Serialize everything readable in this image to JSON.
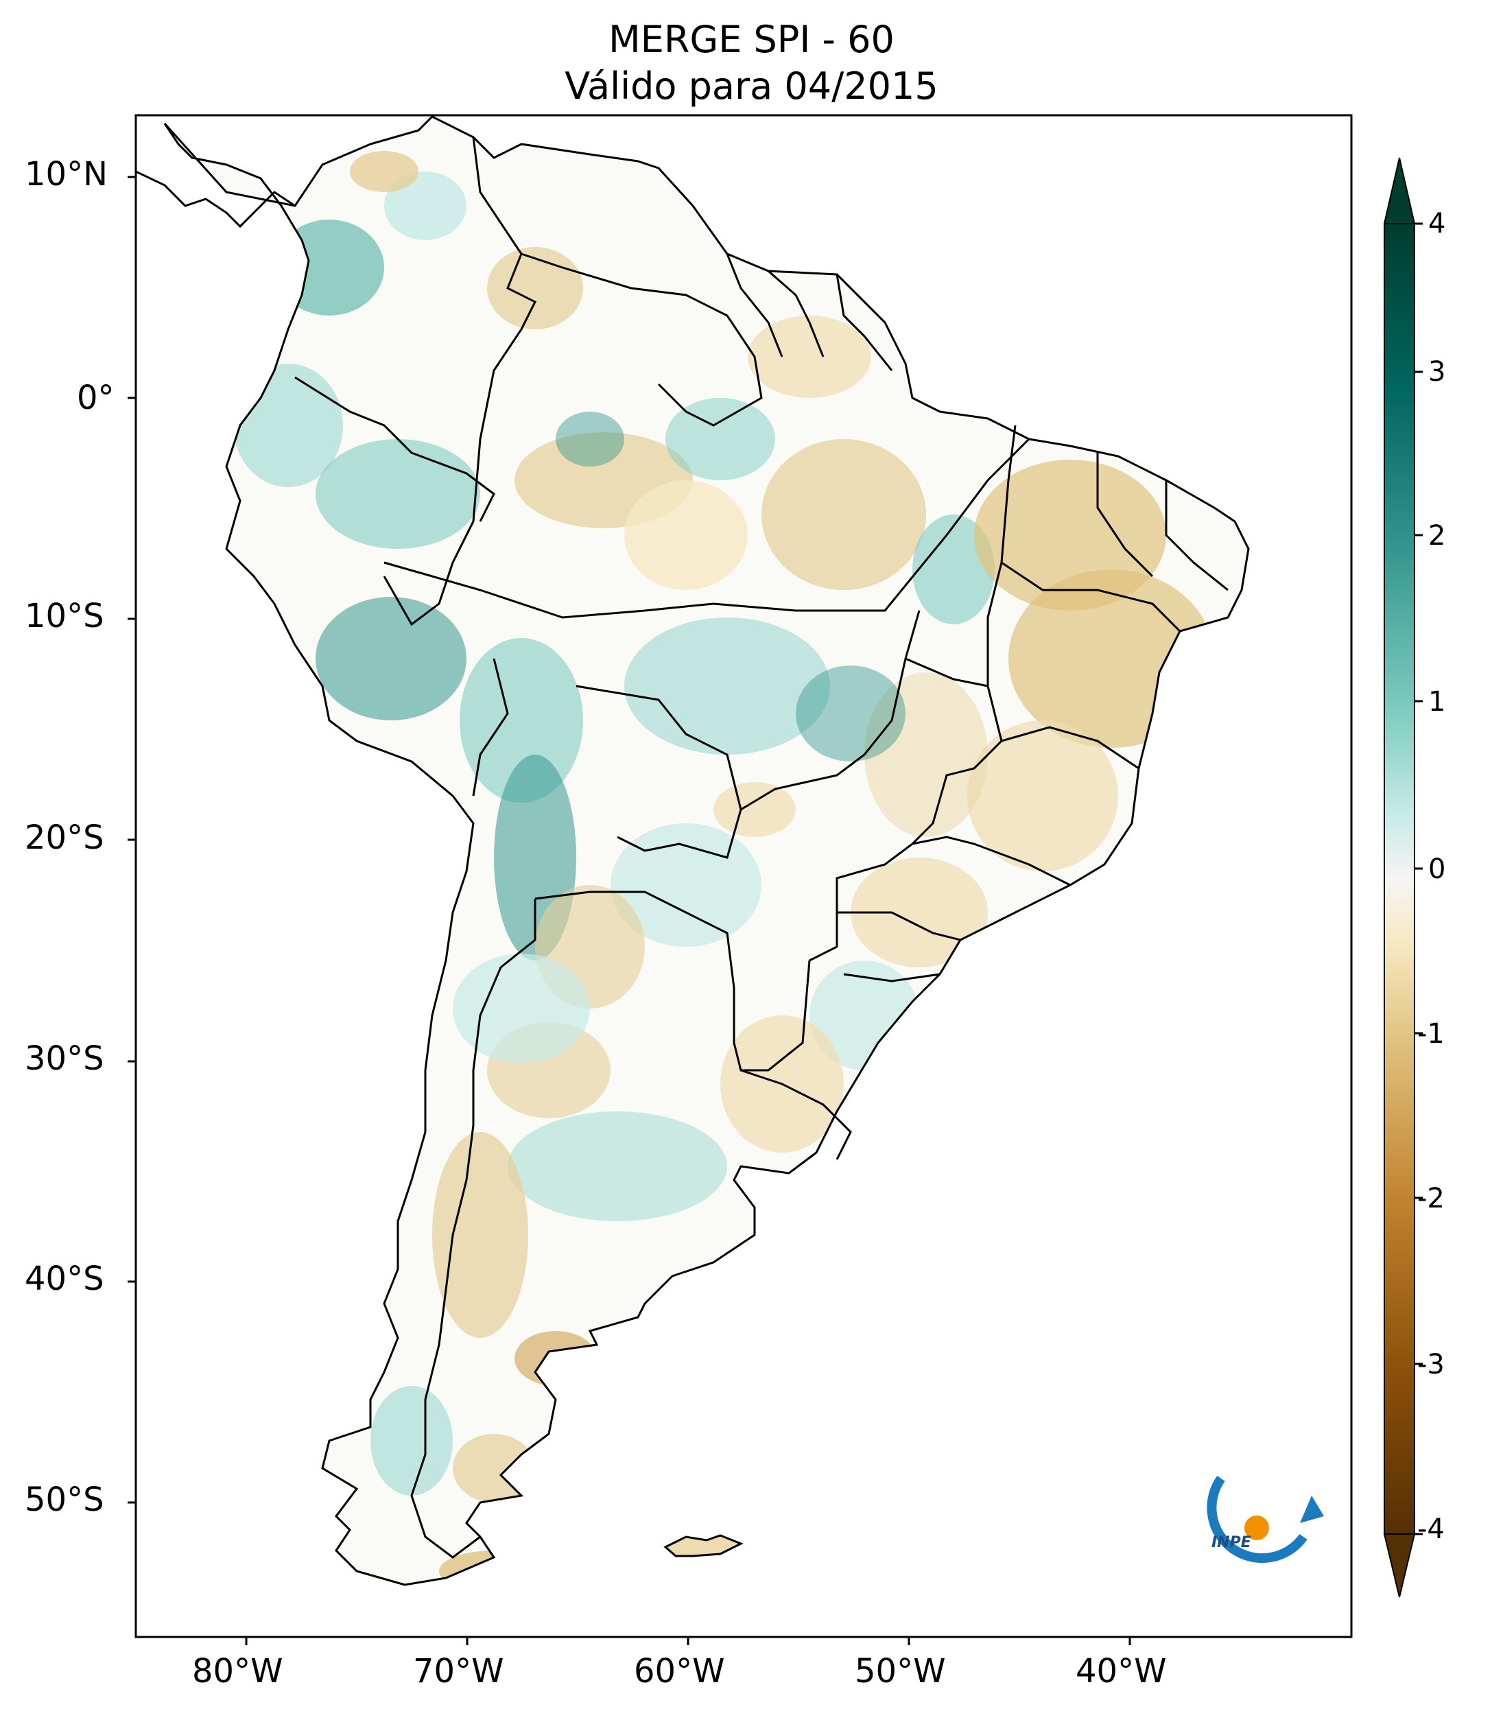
{
  "title": {
    "line1": "MERGE   SPI - 60",
    "line2": "Válido para 04/2015"
  },
  "map": {
    "lat_ticks": [
      "10°N",
      "0°",
      "10°S",
      "20°S",
      "30°S",
      "40°S",
      "50°S"
    ],
    "lon_ticks": [
      "80°W",
      "70°W",
      "60°W",
      "50°W",
      "40°W"
    ],
    "extent": {
      "lon_min": -85,
      "lon_max": -30,
      "lat_min": -56,
      "lat_max": 13
    }
  },
  "colorbar": {
    "ticks": [
      "4",
      "3",
      "2",
      "1",
      "0",
      "-1",
      "-2",
      "-3",
      "-4"
    ],
    "range": [
      -4,
      4
    ],
    "colormap": "BrBG",
    "colors": {
      "wet_max": "#003c30",
      "wet_mid": "#35978f",
      "wet_light": "#c7eae5",
      "neutral": "#f5f5f5",
      "dry_light": "#f6e8c3",
      "dry_mid": "#bf812d",
      "dry_max": "#543005"
    }
  },
  "logo": {
    "text": "INPE",
    "colors": {
      "arc": "#1a7bbf",
      "dot": "#f29100"
    }
  }
}
